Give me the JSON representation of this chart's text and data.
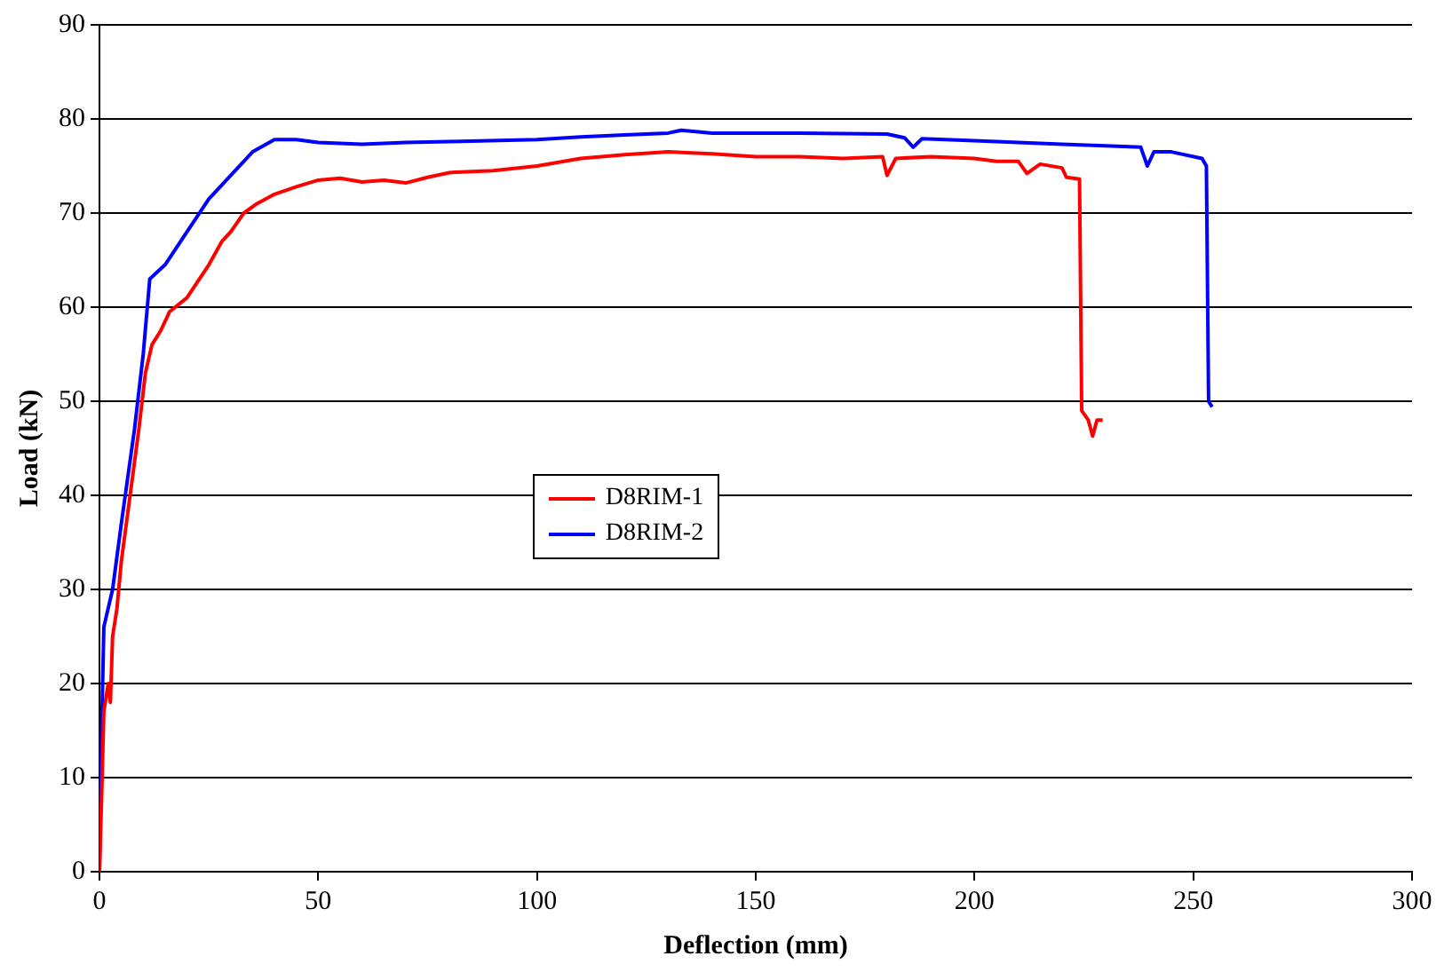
{
  "chart_data": {
    "type": "line",
    "xlabel": "Deflection (mm)",
    "ylabel": "Load (kN)",
    "xlim": [
      0,
      300
    ],
    "xticks": [
      0,
      50,
      100,
      150,
      200,
      250,
      300
    ],
    "ylim": [
      0,
      90
    ],
    "yticks": [
      0,
      10,
      20,
      30,
      40,
      50,
      60,
      70,
      80,
      90
    ],
    "grid": "y",
    "legend": "center",
    "marker": "none",
    "line_style": "solid",
    "series": [
      {
        "name": "D8RIM-1",
        "color": "#ff0000",
        "x": [
          0,
          0.5,
          1,
          2,
          2.5,
          3,
          4,
          5,
          7,
          9,
          10.5,
          12,
          14,
          16,
          20,
          25,
          28,
          30,
          33,
          36,
          40,
          45,
          50,
          55,
          60,
          65,
          70,
          75,
          80,
          90,
          100,
          110,
          120,
          130,
          140,
          150,
          160,
          170,
          179,
          180,
          182,
          190,
          200,
          205,
          210,
          212,
          215,
          220,
          221,
          224,
          224.5,
          226,
          227,
          228,
          229.3
        ],
        "values": [
          0,
          8,
          17,
          20,
          18,
          25,
          28,
          33,
          40,
          47,
          53,
          56,
          57.5,
          59.5,
          61,
          64.5,
          67,
          68,
          70,
          71,
          72,
          72.8,
          73.5,
          73.7,
          73.3,
          73.5,
          73.2,
          73.8,
          74.3,
          74.5,
          75,
          75.8,
          76.2,
          76.5,
          76.3,
          76,
          76,
          75.8,
          76,
          74,
          75.8,
          76,
          75.8,
          75.5,
          75.5,
          74.2,
          75.2,
          74.8,
          73.8,
          73.6,
          49,
          48,
          46.3,
          48,
          48
        ]
      },
      {
        "name": "D8RIM-2",
        "color": "#0000ff",
        "x": [
          0,
          0.5,
          1,
          3,
          5,
          8,
          10,
          11.5,
          15,
          20,
          25,
          30,
          35,
          40,
          45,
          50,
          60,
          70,
          80,
          100,
          110,
          120,
          130,
          133,
          140,
          160,
          180,
          184,
          186,
          188,
          200,
          220,
          238,
          239.5,
          241,
          245,
          252,
          253,
          253.5,
          254.3
        ],
        "values": [
          0,
          15,
          26,
          30,
          37,
          47,
          55,
          63,
          64.5,
          68,
          71.5,
          74,
          76.5,
          77.8,
          77.8,
          77.5,
          77.3,
          77.5,
          77.6,
          77.8,
          78.1,
          78.3,
          78.5,
          78.8,
          78.5,
          78.5,
          78.4,
          78,
          77,
          77.9,
          77.7,
          77.3,
          77,
          75,
          76.5,
          76.5,
          75.8,
          75,
          50,
          49.4
        ]
      }
    ]
  }
}
